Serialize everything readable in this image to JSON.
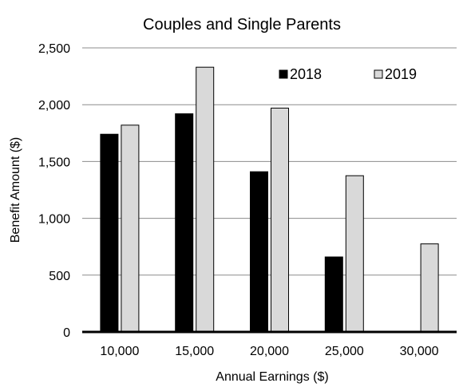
{
  "chart_data": {
    "type": "bar",
    "title": "Couples and Single Parents",
    "xlabel": "Annual Earnings ($)",
    "ylabel": "Benefit Amount ($)",
    "categories": [
      "10,000",
      "15,000",
      "20,000",
      "25,000",
      "30,000"
    ],
    "series": [
      {
        "name": "2018",
        "color": "#000000",
        "values": [
          1740,
          1920,
          1410,
          660,
          0
        ]
      },
      {
        "name": "2019",
        "color": "#d9d9d9",
        "values": [
          1820,
          2330,
          1970,
          1375,
          775
        ]
      }
    ],
    "ylim": [
      0,
      2500
    ],
    "yticks": [
      0,
      500,
      1000,
      1500,
      2000,
      2500
    ],
    "ytick_labels": [
      "0",
      "500",
      "1,000",
      "1,500",
      "2,000",
      "2,500"
    ],
    "grid": true,
    "legend_position": "top-right"
  }
}
